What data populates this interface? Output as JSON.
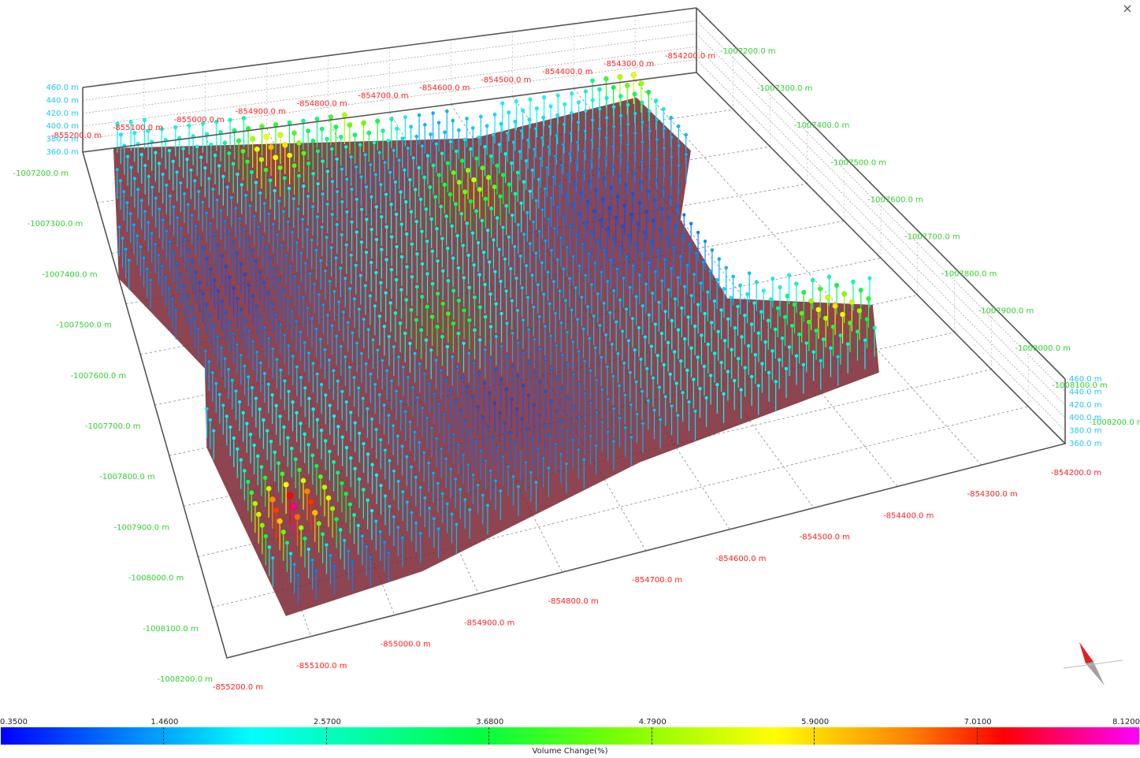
{
  "close_label": "×",
  "chart_data": {
    "type": "scatter",
    "x_ticks": [
      "-855200.0 m",
      "-855100.0 m",
      "-855000.0 m",
      "-854900.0 m",
      "-854800.0 m",
      "-854700.0 m",
      "-854600.0 m",
      "-854500.0 m",
      "-854400.0 m",
      "-854300.0 m",
      "-854200.0 m"
    ],
    "y_ticks": [
      "-1007200.0 m",
      "-1007300.0 m",
      "-1007400.0 m",
      "-1007500.0 m",
      "-1007600.0 m",
      "-1007700.0 m",
      "-1007800.0 m",
      "-1007900.0 m",
      "-1008000.0 m",
      "-1008100.0 m",
      "-1008200.0 m"
    ],
    "z_ticks": [
      "460.0 m",
      "440.0 m",
      "420.0 m",
      "400.0 m",
      "380.0 m",
      "360.0 m"
    ],
    "xlim": [
      -855200,
      -854200
    ],
    "ylim": [
      -1008200,
      -1007200
    ],
    "zlim": [
      360,
      460
    ],
    "colorbar": {
      "title": "Volume Change(%)",
      "min": 0.35,
      "max": 8.12,
      "ticks": [
        "0.3500",
        "1.4600",
        "2.5700",
        "3.6800",
        "4.7900",
        "5.9000",
        "7.0100",
        "8.1200"
      ]
    },
    "hotspots": [
      {
        "x": -855080,
        "y": -1008000,
        "value": 7.3
      },
      {
        "x": -854920,
        "y": -1007300,
        "value": 6.2
      },
      {
        "x": -854780,
        "y": -1007250,
        "value": 5.8
      },
      {
        "x": -854660,
        "y": -1007430,
        "value": 5.1
      },
      {
        "x": -854330,
        "y": -1007250,
        "value": 5.6
      },
      {
        "x": -854330,
        "y": -1007850,
        "value": 6.0
      },
      {
        "x": -854800,
        "y": -1007700,
        "value": 3.9
      }
    ],
    "grid": true,
    "colors": {
      "x_axis": "#ff2020",
      "y_axis": "#30d030",
      "z_axis": "#20c8f0",
      "base": "#7a2530"
    }
  }
}
